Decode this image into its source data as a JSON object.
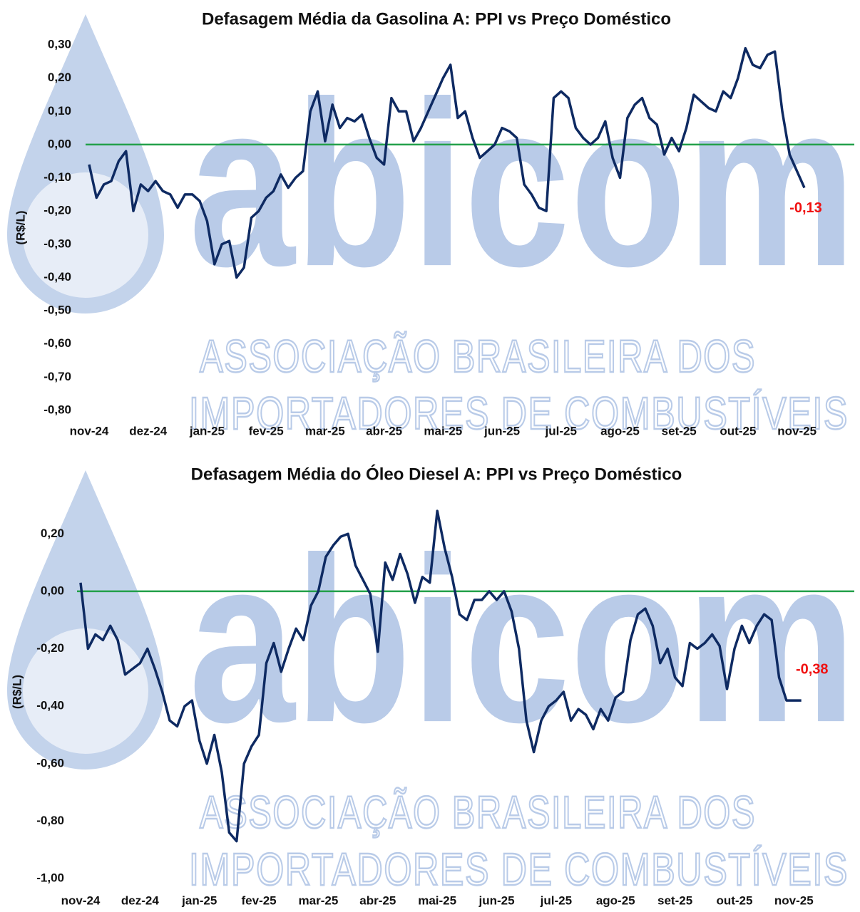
{
  "watermark": {
    "logo": "abicom",
    "line1": "ASSOCIAÇÃO BRASILEIRA DOS",
    "line2": "IMPORTADORES DE COMBUSTÍVEIS"
  },
  "chart_data": [
    {
      "type": "line",
      "title": "Defasagem Média da Gasolina A: PPI vs Preço Doméstico",
      "y_label": "(R$/L)",
      "categories": [
        "nov-24",
        null,
        null,
        null,
        null,
        null,
        null,
        null,
        "dez-24",
        null,
        null,
        null,
        null,
        null,
        null,
        null,
        "jan-25",
        null,
        null,
        null,
        null,
        null,
        null,
        null,
        "fev-25",
        null,
        null,
        null,
        null,
        null,
        null,
        null,
        "mar-25",
        null,
        null,
        null,
        null,
        null,
        null,
        null,
        "abr-25",
        null,
        null,
        null,
        null,
        null,
        null,
        null,
        "mai-25",
        null,
        null,
        null,
        null,
        null,
        null,
        null,
        "jun-25",
        null,
        null,
        null,
        null,
        null,
        null,
        null,
        "jul-25",
        null,
        null,
        null,
        null,
        null,
        null,
        null,
        "ago-25",
        null,
        null,
        null,
        null,
        null,
        null,
        null,
        "set-25",
        null,
        null,
        null,
        null,
        null,
        null,
        null,
        "out-25",
        null,
        null,
        null,
        null,
        null,
        null,
        null,
        "nov-25",
        null
      ],
      "series": [
        {
          "name": "Defasagem",
          "color": "#0e2a62",
          "values": [
            -0.06,
            -0.16,
            -0.12,
            -0.11,
            -0.05,
            -0.02,
            -0.2,
            -0.12,
            -0.14,
            -0.11,
            -0.14,
            -0.15,
            -0.19,
            -0.15,
            -0.15,
            -0.17,
            -0.23,
            -0.36,
            -0.3,
            -0.29,
            -0.4,
            -0.37,
            -0.22,
            -0.2,
            -0.16,
            -0.14,
            -0.09,
            -0.13,
            -0.1,
            -0.08,
            0.1,
            0.16,
            0.01,
            0.12,
            0.05,
            0.08,
            0.07,
            0.09,
            0.02,
            -0.04,
            -0.06,
            0.14,
            0.1,
            0.1,
            0.01,
            0.05,
            0.1,
            0.15,
            0.2,
            0.24,
            0.08,
            0.1,
            0.02,
            -0.04,
            -0.02,
            0.0,
            0.05,
            0.04,
            0.02,
            -0.12,
            -0.15,
            -0.19,
            -0.2,
            0.14,
            0.16,
            0.14,
            0.05,
            0.02,
            0.0,
            0.02,
            0.07,
            -0.04,
            -0.1,
            0.08,
            0.12,
            0.14,
            0.08,
            0.06,
            -0.03,
            0.02,
            -0.02,
            0.05,
            0.15,
            0.13,
            0.11,
            0.1,
            0.16,
            0.14,
            0.2,
            0.29,
            0.24,
            0.23,
            0.27,
            0.28,
            0.1,
            -0.03,
            -0.08,
            -0.13
          ]
        }
      ],
      "ylim": [
        -0.8,
        0.3
      ],
      "yticks": [
        {
          "value": 0.3,
          "label": "0,30"
        },
        {
          "value": 0.2,
          "label": "0,20"
        },
        {
          "value": 0.1,
          "label": "0,10"
        },
        {
          "value": 0,
          "label": "0,00"
        },
        {
          "value": -0.1,
          "label": "-0,10"
        },
        {
          "value": -0.2,
          "label": "-0,20"
        },
        {
          "value": -0.3,
          "label": "-0,30"
        },
        {
          "value": -0.4,
          "label": "-0,40"
        },
        {
          "value": -0.5,
          "label": "-0,50"
        },
        {
          "value": -0.6,
          "label": "-0,60"
        },
        {
          "value": -0.7,
          "label": "-0,70"
        },
        {
          "value": -0.8,
          "label": "-0,80"
        }
      ],
      "reference_line": {
        "value": 0,
        "color": "#23a04a"
      },
      "annotations": [
        {
          "text": "-0,13",
          "color": "#f01010"
        }
      ]
    },
    {
      "type": "line",
      "title": "Defasagem Média do Óleo Diesel A: PPI vs Preço Doméstico",
      "y_label": "(R$/L)",
      "categories": [
        "nov-24",
        null,
        null,
        null,
        null,
        null,
        null,
        null,
        "dez-24",
        null,
        null,
        null,
        null,
        null,
        null,
        null,
        "jan-25",
        null,
        null,
        null,
        null,
        null,
        null,
        null,
        "fev-25",
        null,
        null,
        null,
        null,
        null,
        null,
        null,
        "mar-25",
        null,
        null,
        null,
        null,
        null,
        null,
        null,
        "abr-25",
        null,
        null,
        null,
        null,
        null,
        null,
        null,
        "mai-25",
        null,
        null,
        null,
        null,
        null,
        null,
        null,
        "jun-25",
        null,
        null,
        null,
        null,
        null,
        null,
        null,
        "jul-25",
        null,
        null,
        null,
        null,
        null,
        null,
        null,
        "ago-25",
        null,
        null,
        null,
        null,
        null,
        null,
        null,
        "set-25",
        null,
        null,
        null,
        null,
        null,
        null,
        null,
        "out-25",
        null,
        null,
        null,
        null,
        null,
        null,
        null,
        "nov-25",
        null
      ],
      "series": [
        {
          "name": "Defasagem",
          "color": "#0e2a62",
          "values": [
            0.03,
            -0.2,
            -0.15,
            -0.17,
            -0.12,
            -0.17,
            -0.29,
            -0.27,
            -0.25,
            -0.2,
            -0.27,
            -0.35,
            -0.45,
            -0.47,
            -0.4,
            -0.38,
            -0.52,
            -0.6,
            -0.5,
            -0.63,
            -0.84,
            -0.87,
            -0.6,
            -0.54,
            -0.5,
            -0.25,
            -0.18,
            -0.28,
            -0.2,
            -0.13,
            -0.17,
            -0.05,
            0.0,
            0.12,
            0.16,
            0.19,
            0.2,
            0.09,
            0.04,
            -0.01,
            -0.21,
            0.1,
            0.04,
            0.13,
            0.06,
            -0.04,
            0.05,
            0.03,
            0.28,
            0.15,
            0.05,
            -0.08,
            -0.1,
            -0.03,
            -0.03,
            0.0,
            -0.03,
            0.0,
            -0.07,
            -0.2,
            -0.45,
            -0.56,
            -0.45,
            -0.4,
            -0.38,
            -0.35,
            -0.45,
            -0.41,
            -0.43,
            -0.48,
            -0.41,
            -0.45,
            -0.37,
            -0.35,
            -0.17,
            -0.08,
            -0.06,
            -0.12,
            -0.25,
            -0.2,
            -0.3,
            -0.33,
            -0.18,
            -0.2,
            -0.18,
            -0.15,
            -0.19,
            -0.34,
            -0.2,
            -0.12,
            -0.18,
            -0.12,
            -0.08,
            -0.1,
            -0.3,
            -0.38,
            -0.38,
            -0.38
          ]
        }
      ],
      "ylim": [
        -1.0,
        0.3
      ],
      "yticks": [
        {
          "value": 0.2,
          "label": "0,20"
        },
        {
          "value": 0,
          "label": "0,00"
        },
        {
          "value": -0.2,
          "label": "-0,20"
        },
        {
          "value": -0.4,
          "label": "-0,40"
        },
        {
          "value": -0.6,
          "label": "-0,60"
        },
        {
          "value": -0.8,
          "label": "-0,80"
        },
        {
          "value": -1.0,
          "label": "-1,00"
        }
      ],
      "reference_line": {
        "value": 0,
        "color": "#23a04a"
      },
      "annotations": [
        {
          "text": "-0,38",
          "color": "#f01010"
        }
      ]
    }
  ]
}
